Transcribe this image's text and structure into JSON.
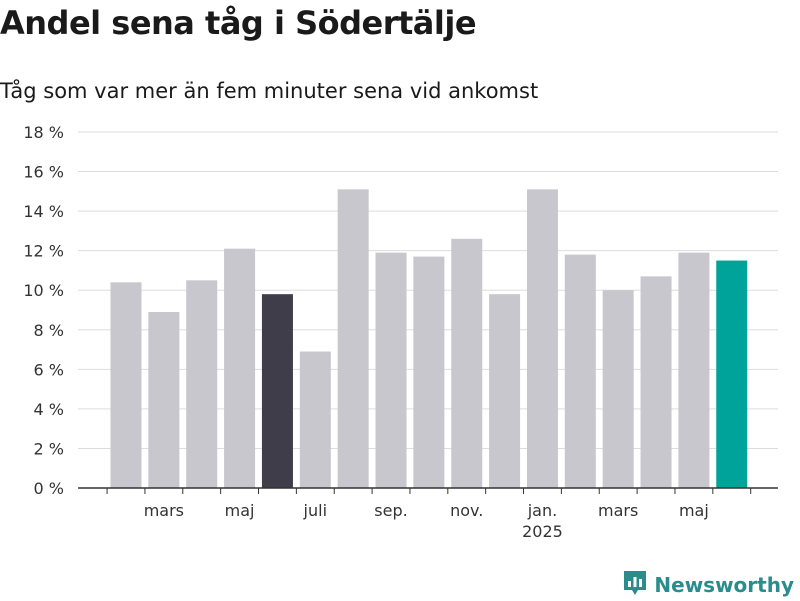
{
  "header": {
    "title": "Andel sena tåg i Södertälje",
    "subtitle": "Tåg som var mer än fem minuter sena vid ankomst"
  },
  "brand": {
    "name": "Newsworthy",
    "icon": "newsworthy-logo-icon"
  },
  "colors": {
    "bar_default": "#c8c7cd",
    "bar_highlight_dark": "#403d4a",
    "bar_highlight_latest": "#00a39a",
    "brand": "#2a8c8c",
    "grid": "#dddddd"
  },
  "chart_data": {
    "type": "bar",
    "title": "Andel sena tåg i Södertälje",
    "subtitle": "Tåg som var mer än fem minuter sena vid ankomst",
    "xlabel": "",
    "ylabel": "",
    "ylim": [
      0,
      18
    ],
    "yticks": [
      0,
      2,
      4,
      6,
      8,
      10,
      12,
      14,
      16,
      18
    ],
    "ytick_labels": [
      "0 %",
      "2 %",
      "4 %",
      "6 %",
      "8 %",
      "10 %",
      "12 %",
      "14 %",
      "16 %",
      "18 %"
    ],
    "grid": true,
    "x": [
      "2024-02",
      "2024-03",
      "2024-04",
      "2024-05",
      "2024-06",
      "2024-07",
      "2024-08",
      "2024-09",
      "2024-10",
      "2024-11",
      "2024-12",
      "2025-01",
      "2025-02",
      "2025-03",
      "2025-04",
      "2025-05",
      "2025-06"
    ],
    "values": [
      10.4,
      8.9,
      10.5,
      12.1,
      9.8,
      6.9,
      15.1,
      11.9,
      11.7,
      12.6,
      9.8,
      15.1,
      11.8,
      10.0,
      10.7,
      11.9,
      11.5
    ],
    "highlight": {
      "2024-06": "dark",
      "2025-06": "latest"
    },
    "xtick_labels": [
      {
        "at": "2024-03",
        "label": "mars"
      },
      {
        "at": "2024-05",
        "label": "maj"
      },
      {
        "at": "2024-07",
        "label": "juli"
      },
      {
        "at": "2024-09",
        "label": "sep."
      },
      {
        "at": "2024-11",
        "label": "nov."
      },
      {
        "at": "2025-01",
        "label": "jan.",
        "sublabel": "2025"
      },
      {
        "at": "2025-03",
        "label": "mars"
      },
      {
        "at": "2025-05",
        "label": "maj"
      }
    ]
  }
}
